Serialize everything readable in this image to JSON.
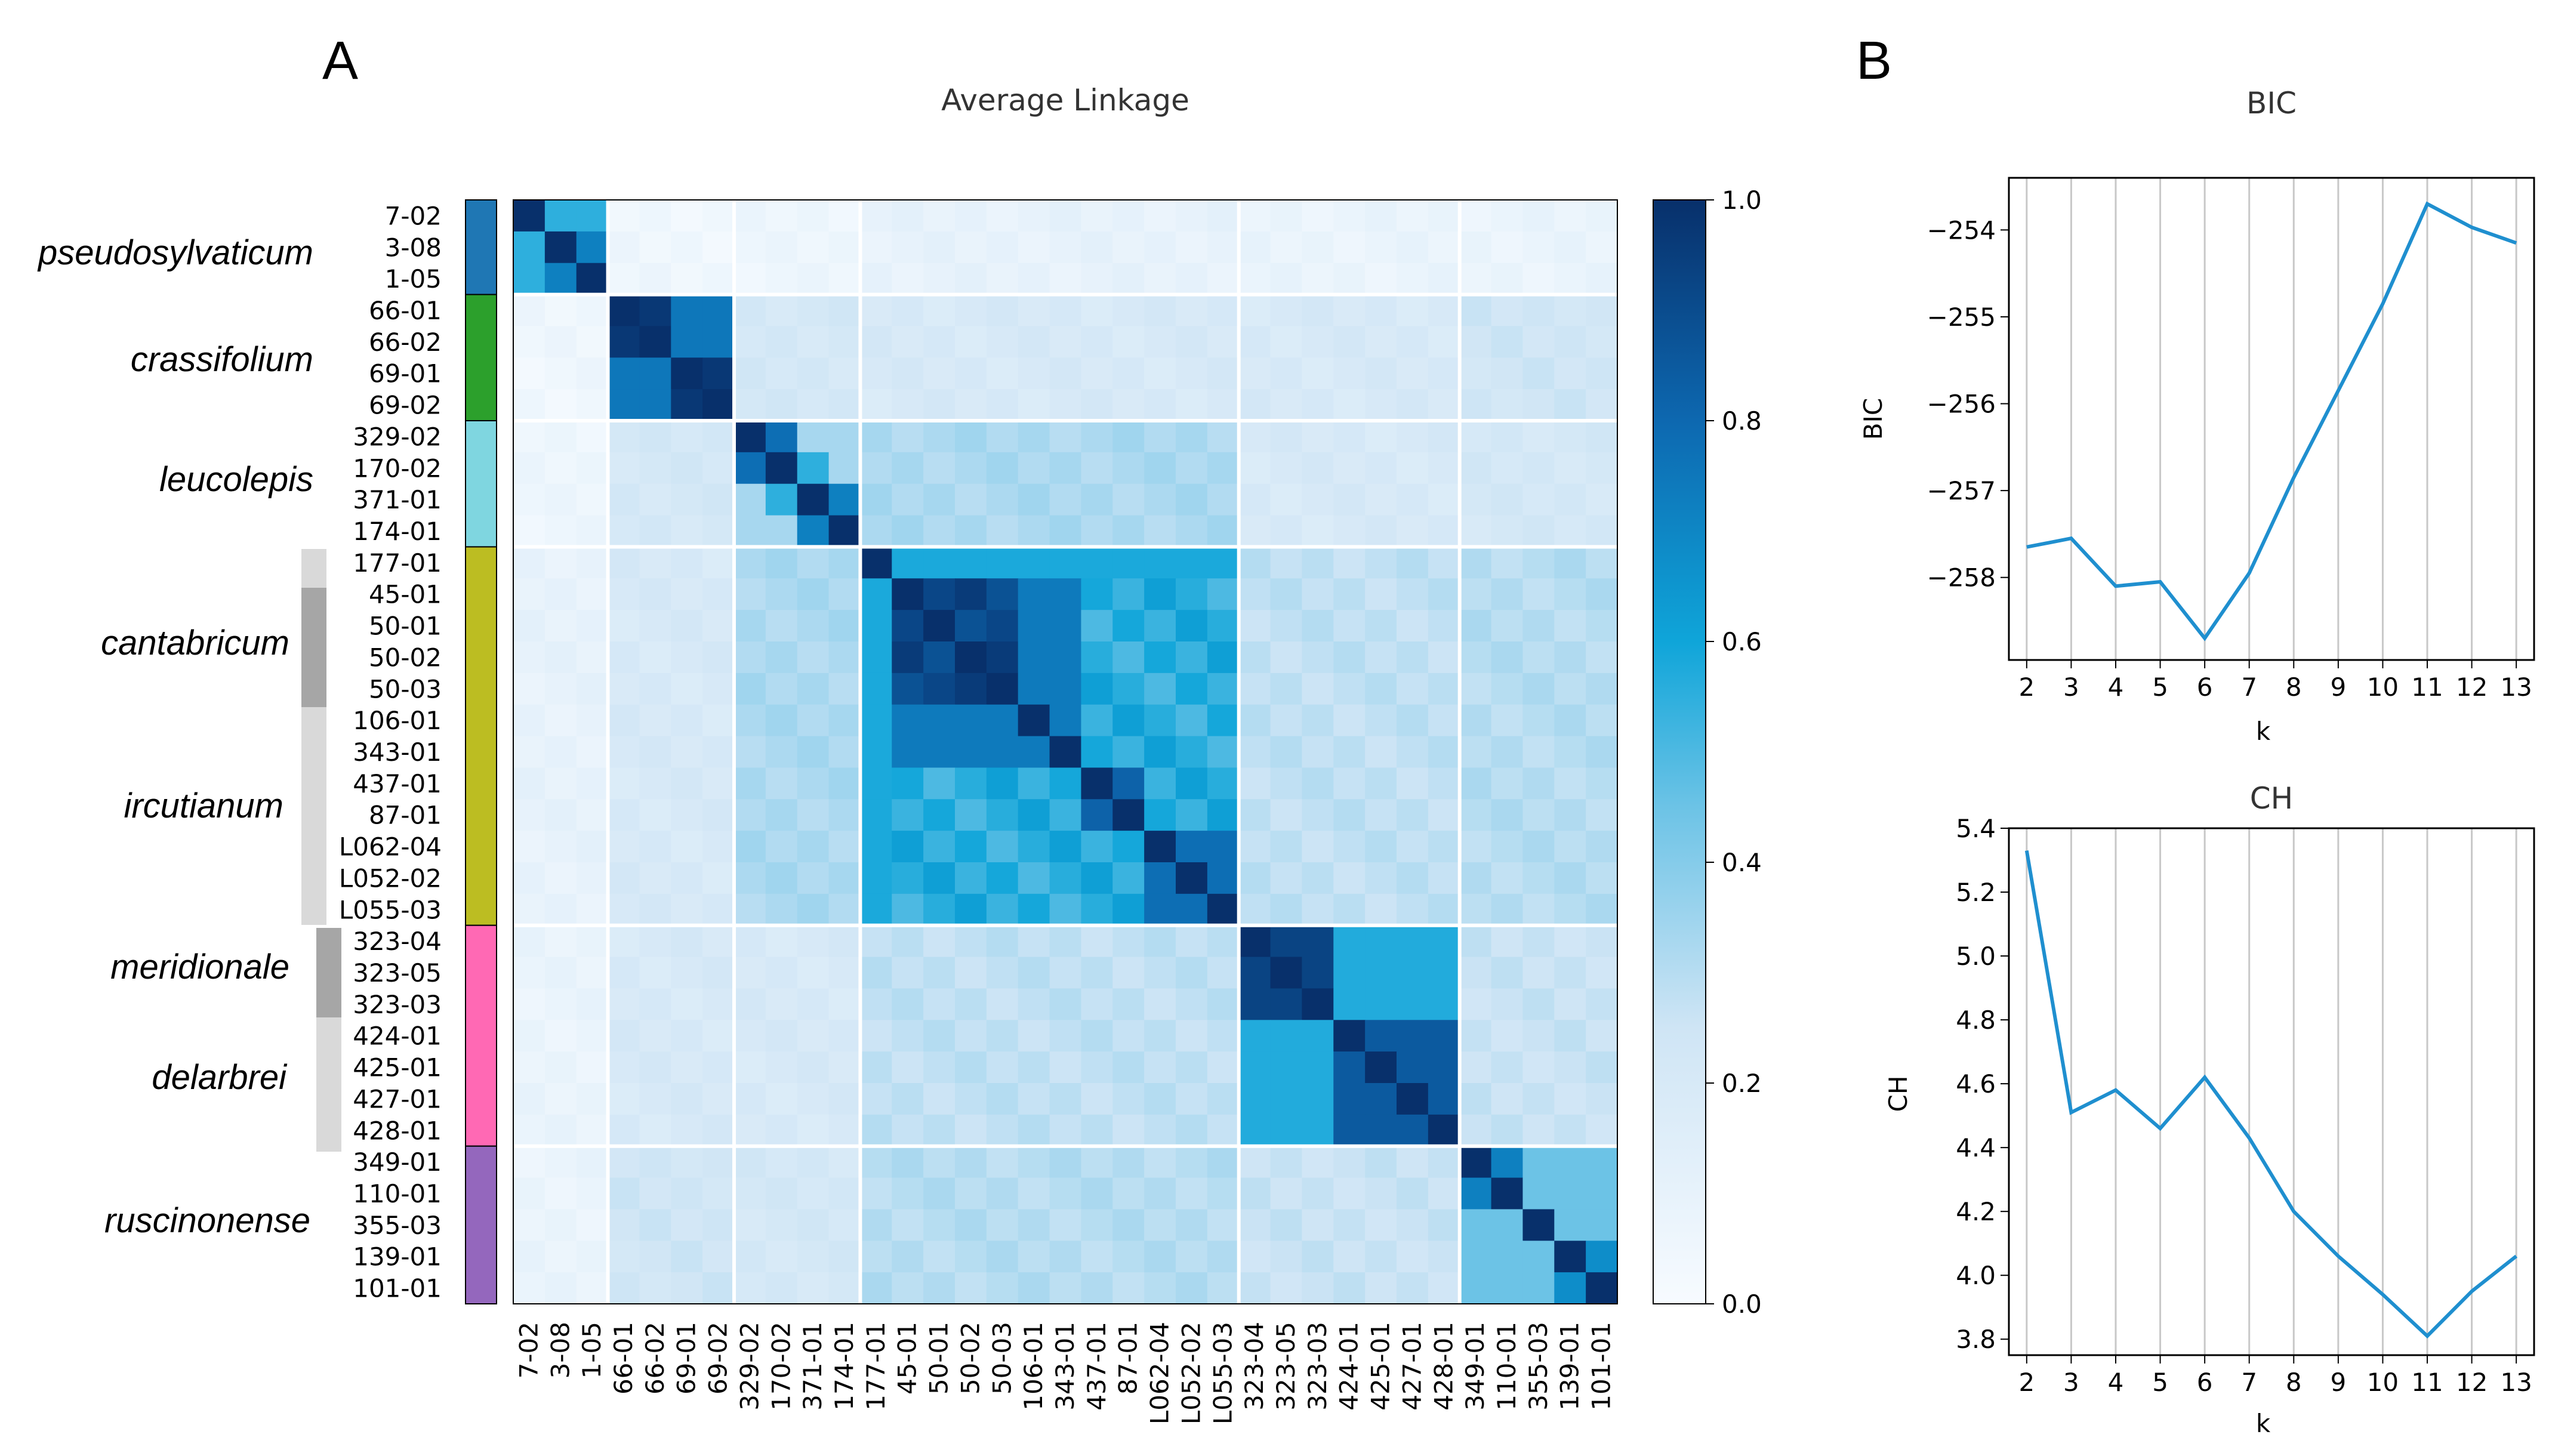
{
  "panel_labels": {
    "a": "A",
    "b": "B"
  },
  "chart_data": [
    {
      "type": "heatmap",
      "title": "Average Linkage",
      "row_labels": [
        "7-02",
        "3-08",
        "1-05",
        "66-01",
        "66-02",
        "69-01",
        "69-02",
        "329-02",
        "170-02",
        "371-01",
        "174-01",
        "177-01",
        "45-01",
        "50-01",
        "50-02",
        "50-03",
        "106-01",
        "343-01",
        "437-01",
        "87-01",
        "L062-04",
        "L052-02",
        "L055-03",
        "323-04",
        "323-05",
        "323-03",
        "424-01",
        "425-01",
        "427-01",
        "428-01",
        "349-01",
        "110-01",
        "355-03",
        "139-01",
        "101-01"
      ],
      "col_labels": [
        "7-02",
        "3-08",
        "1-05",
        "66-01",
        "66-02",
        "69-01",
        "69-02",
        "329-02",
        "170-02",
        "371-01",
        "174-01",
        "177-01",
        "45-01",
        "50-01",
        "50-02",
        "50-03",
        "106-01",
        "343-01",
        "437-01",
        "87-01",
        "L062-04",
        "L052-02",
        "L055-03",
        "323-04",
        "323-05",
        "323-03",
        "424-01",
        "425-01",
        "427-01",
        "428-01",
        "349-01",
        "110-01",
        "355-03",
        "139-01",
        "101-01"
      ],
      "groups": [
        {
          "name": "pseudosylvaticum",
          "start": 0,
          "end": 2,
          "color": "#1f77b4"
        },
        {
          "name": "crassifolium",
          "start": 3,
          "end": 6,
          "color": "#2ca02c"
        },
        {
          "name": "leucolepis",
          "start": 7,
          "end": 10,
          "color": "#7fd6e0"
        },
        {
          "name": "cantabricum",
          "start": 11,
          "end": 22,
          "color": "#bcbd22"
        },
        {
          "name": "meridionale",
          "start": 23,
          "end": 29,
          "color": "#ff69b4"
        },
        {
          "name": "ruscinonense",
          "start": 30,
          "end": 34,
          "color": "#9467bd"
        }
      ],
      "subspecies": [
        {
          "name": "cantabricum",
          "start": 11,
          "end": 22
        },
        {
          "name": "ircutianum",
          "start": 11,
          "end": 22
        },
        {
          "name": "meridionale",
          "start": 23,
          "end": 29
        },
        {
          "name": "delarbrei",
          "start": 23,
          "end": 29
        }
      ],
      "boundaries": [
        3,
        7,
        11,
        23,
        30
      ],
      "colorbar": {
        "min": 0.0,
        "max": 1.0,
        "ticks": [
          "0.0",
          "0.2",
          "0.4",
          "0.6",
          "0.8",
          "1.0"
        ]
      }
    },
    {
      "type": "line",
      "title": "BIC",
      "xlabel": "k",
      "ylabel": "BIC",
      "x": [
        2,
        3,
        4,
        5,
        6,
        7,
        8,
        9,
        10,
        11,
        12,
        13
      ],
      "values": [
        -257.65,
        -257.55,
        -258.1,
        -258.05,
        -258.7,
        -257.95,
        -256.85,
        -255.85,
        -254.85,
        -253.7,
        -253.97,
        -254.15
      ],
      "ylim": [
        -258.95,
        -253.4
      ],
      "yticks": [
        -258,
        -257,
        -256,
        -255,
        -254
      ],
      "ytick_labels": [
        "−258",
        "−257",
        "−256",
        "−255",
        "−254"
      ],
      "xticks": [
        "2",
        "3",
        "4",
        "5",
        "6",
        "7",
        "8",
        "9",
        "10",
        "11",
        "12",
        "13"
      ]
    },
    {
      "type": "line",
      "title": "CH",
      "xlabel": "k",
      "ylabel": "CH",
      "x": [
        2,
        3,
        4,
        5,
        6,
        7,
        8,
        9,
        10,
        11,
        12,
        13
      ],
      "values": [
        5.33,
        4.51,
        4.58,
        4.46,
        4.62,
        4.43,
        4.2,
        4.06,
        3.94,
        3.81,
        3.95,
        4.06
      ],
      "ylim": [
        3.75,
        5.4
      ],
      "yticks": [
        3.8,
        4.0,
        4.2,
        4.4,
        4.6,
        4.8,
        5.0,
        5.2,
        5.4
      ],
      "ytick_labels": [
        "3.8",
        "4.0",
        "4.2",
        "4.4",
        "4.6",
        "4.8",
        "5.0",
        "5.2",
        "5.4"
      ],
      "xticks": [
        "2",
        "3",
        "4",
        "5",
        "6",
        "7",
        "8",
        "9",
        "10",
        "11",
        "12",
        "13"
      ]
    }
  ]
}
